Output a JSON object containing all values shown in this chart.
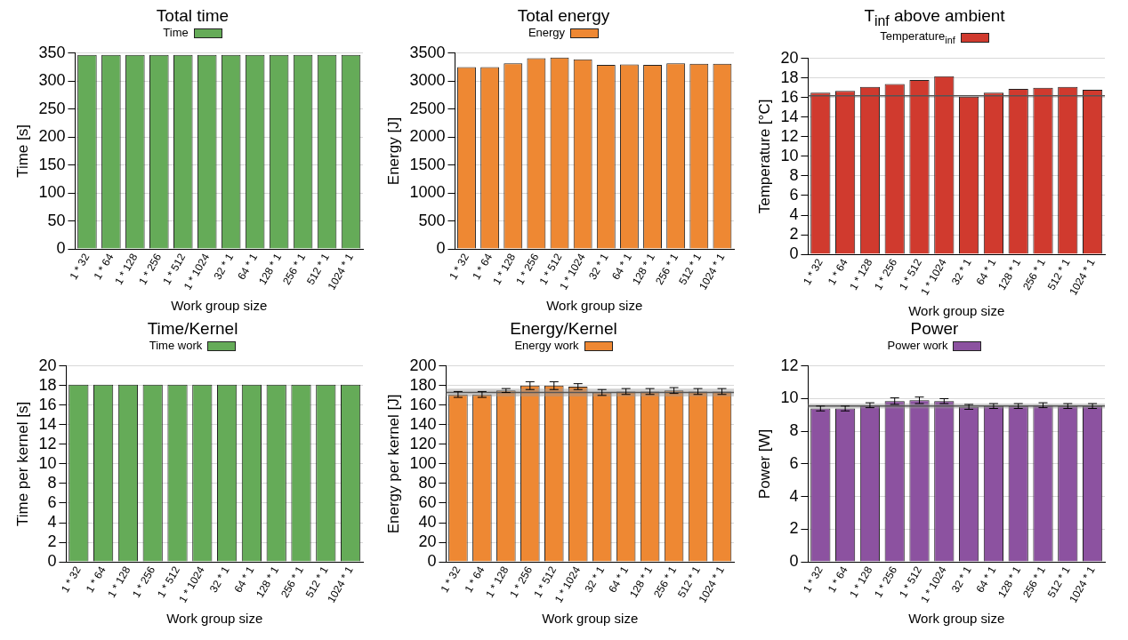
{
  "chart_data": [
    {
      "type": "bar",
      "title": "Total time",
      "xlabel": "Work group size",
      "ylabel": "Time [s]",
      "categories": [
        "1 * 32",
        "1 * 64",
        "1 * 128",
        "1 * 256",
        "1 * 512",
        "1 * 1024",
        "32 * 1",
        "64 * 1",
        "128 * 1",
        "256 * 1",
        "512 * 1",
        "1024 * 1"
      ],
      "series": [
        {
          "name": "Time",
          "color": "#65ab58",
          "values": [
            347,
            347,
            347,
            347,
            347,
            347,
            347,
            347,
            347,
            347,
            347,
            347
          ]
        }
      ],
      "ylim": [
        0,
        350
      ],
      "yticks": [
        0,
        50,
        100,
        150,
        200,
        250,
        300,
        350
      ],
      "grid": "y",
      "legend": "top"
    },
    {
      "type": "bar",
      "title": "Total energy",
      "xlabel": "Work group size",
      "ylabel": "Energy [J]",
      "categories": [
        "1 * 32",
        "1 * 64",
        "1 * 128",
        "1 * 256",
        "1 * 512",
        "1 * 1024",
        "32 * 1",
        "64 * 1",
        "128 * 1",
        "256 * 1",
        "512 * 1",
        "1024 * 1"
      ],
      "series": [
        {
          "name": "Energy",
          "color": "#ee8833",
          "values": [
            3250,
            3250,
            3320,
            3410,
            3420,
            3390,
            3290,
            3300,
            3290,
            3320,
            3310,
            3310
          ]
        }
      ],
      "ylim": [
        0,
        3500
      ],
      "yticks": [
        0,
        500,
        1000,
        1500,
        2000,
        2500,
        3000,
        3500
      ],
      "grid": "y",
      "legend": "top"
    },
    {
      "type": "bar",
      "title": "T$_{inf}$ above ambient",
      "xlabel": "Work group size",
      "ylabel": "Temperature [°C]",
      "categories": [
        "1 * 32",
        "1 * 64",
        "1 * 128",
        "1 * 256",
        "1 * 512",
        "1 * 1024",
        "32 * 1",
        "64 * 1",
        "128 * 1",
        "256 * 1",
        "512 * 1",
        "1024 * 1"
      ],
      "series": [
        {
          "name": "Temperature$_{inf}$",
          "color": "#d03a2e",
          "values": [
            16.5,
            16.7,
            17.1,
            17.4,
            17.8,
            18.2,
            16.1,
            16.5,
            16.9,
            17.0,
            17.1,
            16.8
          ]
        }
      ],
      "ylim": [
        0,
        20
      ],
      "yticks": [
        0,
        2,
        4,
        6,
        8,
        10,
        12,
        14,
        16,
        18,
        20
      ],
      "grid": "y",
      "legend": "top",
      "ref_lines": [
        {
          "axis": "y",
          "value": 16.2,
          "color": "#555555"
        }
      ]
    },
    {
      "type": "bar",
      "title": "Time/Kernel",
      "xlabel": "Work group size",
      "ylabel": "Time per kernel [s]",
      "categories": [
        "1 * 32",
        "1 * 64",
        "1 * 128",
        "1 * 256",
        "1 * 512",
        "1 * 1024",
        "32 * 1",
        "64 * 1",
        "128 * 1",
        "256 * 1",
        "512 * 1",
        "1024 * 1"
      ],
      "series": [
        {
          "name": "Time work",
          "color": "#65ab58",
          "values": [
            18.1,
            18.1,
            18.1,
            18.1,
            18.1,
            18.1,
            18.1,
            18.1,
            18.1,
            18.1,
            18.1,
            18.1
          ]
        }
      ],
      "ylim": [
        0,
        20
      ],
      "yticks": [
        0,
        2,
        4,
        6,
        8,
        10,
        12,
        14,
        16,
        18,
        20
      ],
      "grid": "y",
      "legend": "top"
    },
    {
      "type": "bar",
      "title": "Energy/Kernel",
      "xlabel": "Work group size",
      "ylabel": "Energy per kernel [J]",
      "categories": [
        "1 * 32",
        "1 * 64",
        "1 * 128",
        "1 * 256",
        "1 * 512",
        "1 * 1024",
        "32 * 1",
        "64 * 1",
        "128 * 1",
        "256 * 1",
        "512 * 1",
        "1024 * 1"
      ],
      "series": [
        {
          "name": "Energy work",
          "color": "#ee8833",
          "values": [
            171,
            171,
            175,
            180,
            180,
            179,
            173,
            174,
            174,
            175,
            174,
            174
          ],
          "errors": [
            3,
            3,
            2,
            4,
            4,
            3,
            3,
            3,
            3,
            3,
            3,
            3
          ]
        }
      ],
      "ylim": [
        0,
        200
      ],
      "yticks": [
        0,
        20,
        40,
        60,
        80,
        100,
        120,
        140,
        160,
        180,
        200
      ],
      "grid": "y",
      "legend": "top",
      "bands": [
        {
          "axis": "y",
          "from": 169,
          "to": 177,
          "color": "#999999"
        }
      ],
      "ref_lines": [
        {
          "axis": "y",
          "value": 173,
          "color": "#555555"
        }
      ]
    },
    {
      "type": "bar",
      "title": "Power",
      "xlabel": "Work group size",
      "ylabel": "Power [W]",
      "categories": [
        "1 * 32",
        "1 * 64",
        "1 * 128",
        "1 * 256",
        "1 * 512",
        "1 * 1024",
        "32 * 1",
        "64 * 1",
        "128 * 1",
        "256 * 1",
        "512 * 1",
        "1024 * 1"
      ],
      "series": [
        {
          "name": "Power work",
          "color": "#8c52a0",
          "values": [
            9.4,
            9.4,
            9.6,
            9.85,
            9.9,
            9.85,
            9.5,
            9.55,
            9.55,
            9.6,
            9.55,
            9.55
          ],
          "errors": [
            0.15,
            0.15,
            0.15,
            0.2,
            0.2,
            0.15,
            0.15,
            0.15,
            0.15,
            0.15,
            0.15,
            0.15
          ]
        }
      ],
      "ylim": [
        0,
        12
      ],
      "yticks": [
        0,
        2,
        4,
        6,
        8,
        10,
        12
      ],
      "grid": "y",
      "legend": "top",
      "bands": [
        {
          "axis": "y",
          "from": 9.4,
          "to": 9.7,
          "color": "#999999"
        }
      ],
      "ref_lines": [
        {
          "axis": "y",
          "value": 9.55,
          "color": "#555555"
        }
      ]
    }
  ]
}
